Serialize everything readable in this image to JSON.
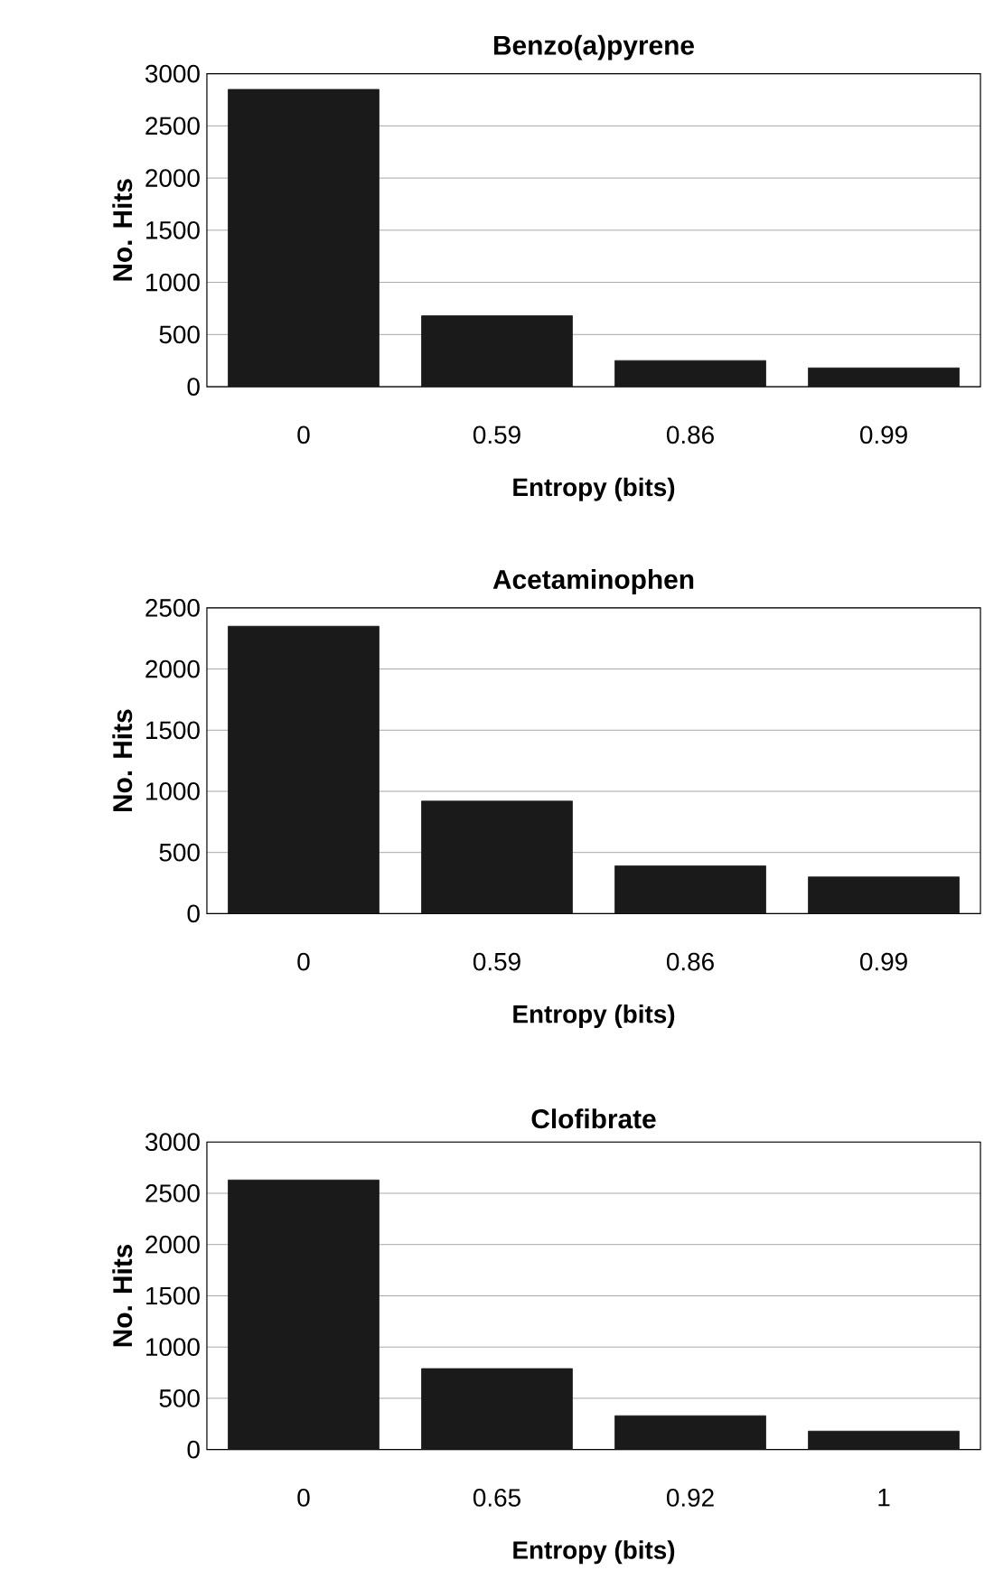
{
  "chart_data": [
    {
      "type": "bar",
      "title": "Benzo(a)pyrene",
      "xlabel": "Entropy (bits)",
      "ylabel": "No. Hits",
      "categories": [
        "0",
        "0.59",
        "0.86",
        "0.99"
      ],
      "values": [
        2850,
        680,
        250,
        180
      ],
      "color": "#1a1a1a",
      "ylim": [
        0,
        3000
      ],
      "yticks": [
        0,
        500,
        1000,
        1500,
        2000,
        2500,
        3000
      ],
      "grid": "y"
    },
    {
      "type": "bar",
      "title": "Acetaminophen",
      "xlabel": "Entropy (bits)",
      "ylabel": "No. Hits",
      "categories": [
        "0",
        "0.59",
        "0.86",
        "0.99"
      ],
      "values": [
        2350,
        920,
        390,
        300
      ],
      "color": "#1a1a1a",
      "ylim": [
        0,
        2500
      ],
      "yticks": [
        0,
        500,
        1000,
        1500,
        2000,
        2500
      ],
      "grid": "y"
    },
    {
      "type": "bar",
      "title": "Clofibrate",
      "xlabel": "Entropy (bits)",
      "ylabel": "No. Hits",
      "categories": [
        "0",
        "0.65",
        "0.92",
        "1"
      ],
      "values": [
        2630,
        790,
        330,
        180
      ],
      "color": "#1a1a1a",
      "ylim": [
        0,
        3000
      ],
      "yticks": [
        0,
        500,
        1000,
        1500,
        2000,
        2500,
        3000
      ],
      "grid": "y"
    }
  ]
}
